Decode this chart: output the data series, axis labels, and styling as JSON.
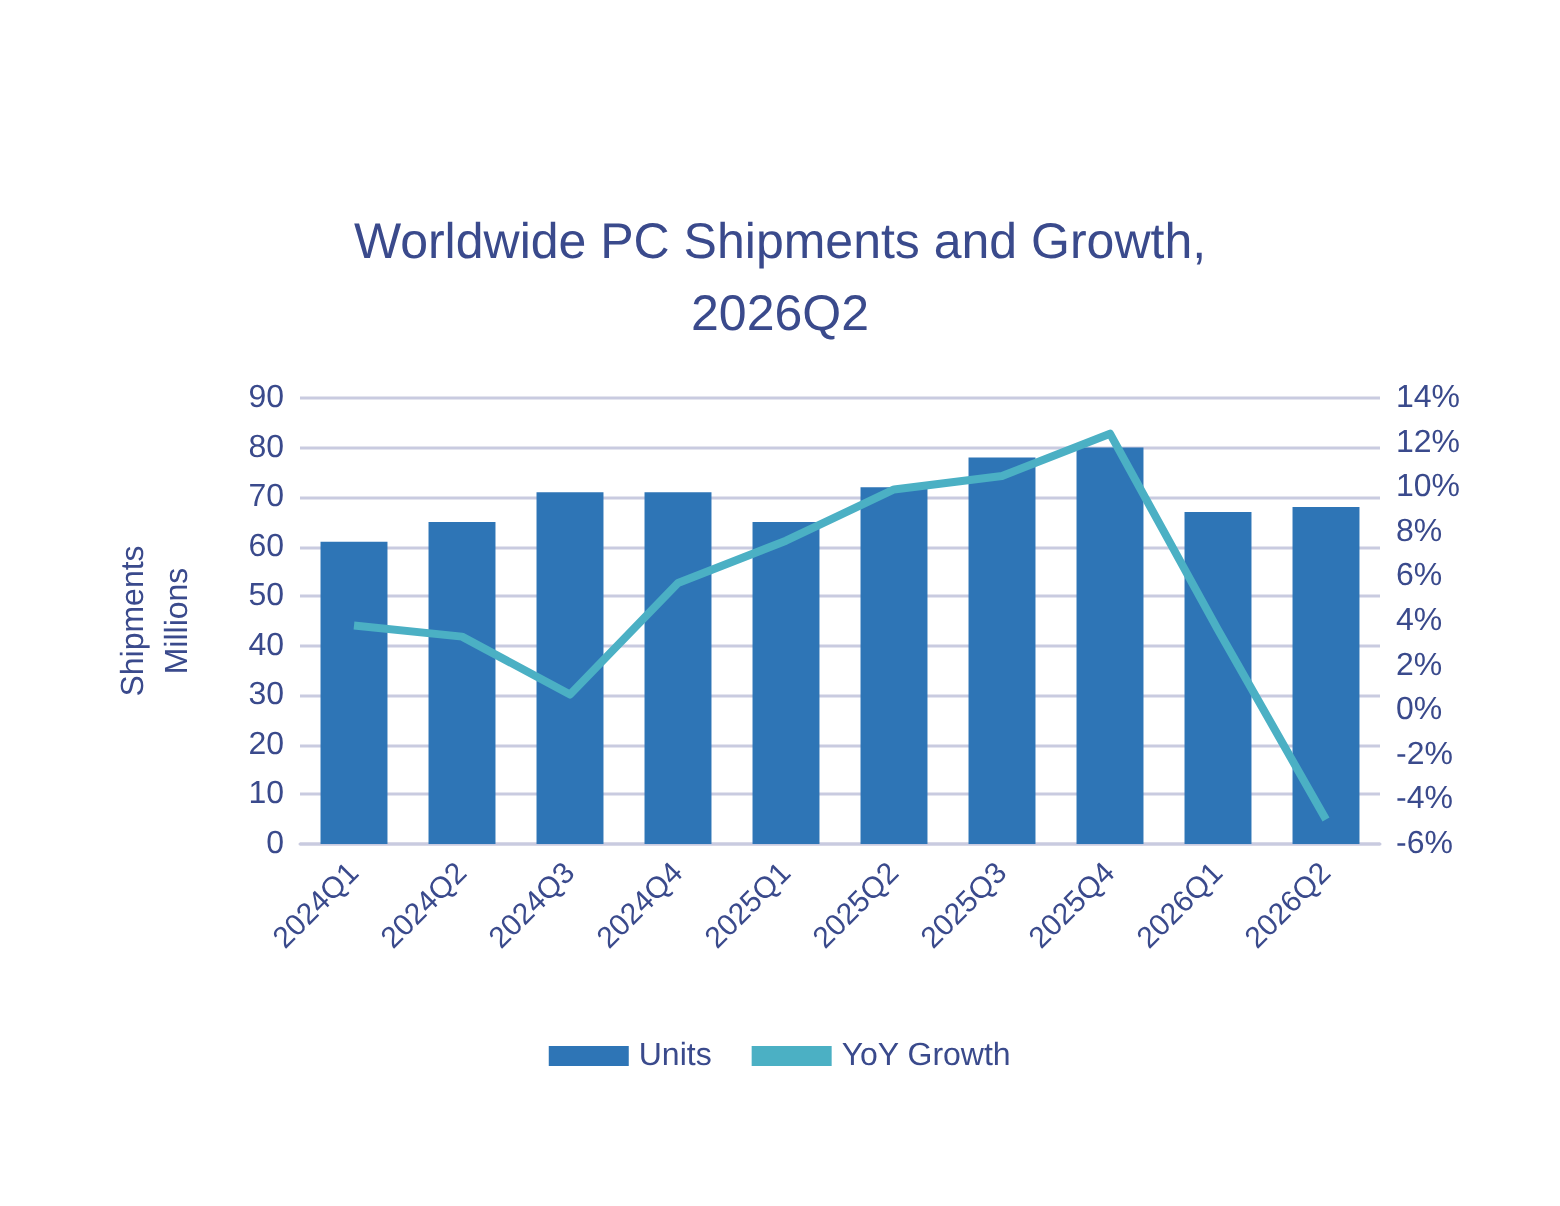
{
  "chart_data": {
    "type": "bar",
    "title": "Worldwide PC Shipments and Growth,\n2026Q2",
    "ylabel": "Shipments\nMillions",
    "categories": [
      "2024Q1",
      "2024Q2",
      "2024Q3",
      "2024Q4",
      "2025Q1",
      "2025Q2",
      "2025Q3",
      "2025Q4",
      "2026Q1",
      "2026Q2"
    ],
    "series": [
      {
        "name": "Units",
        "color": "#2e75b6",
        "values": [
          61,
          65,
          71,
          71,
          65,
          72,
          78,
          80,
          67,
          68
        ]
      },
      {
        "name": "YoY Growth",
        "type": "line",
        "axis": "y2",
        "color": "#4bb0c4",
        "values": [
          3.8,
          3.3,
          0.7,
          5.7,
          7.6,
          9.9,
          10.5,
          12.4,
          3.6,
          -4.9
        ]
      }
    ],
    "ylim": [
      0,
      90
    ],
    "yticks": [
      0,
      10,
      20,
      30,
      40,
      50,
      60,
      70,
      80,
      90
    ],
    "y2lim": [
      -6,
      14
    ],
    "y2ticks": [
      {
        "value": -6,
        "label": "-6%"
      },
      {
        "value": -4,
        "label": "-4%"
      },
      {
        "value": -2,
        "label": "-2%"
      },
      {
        "value": 0,
        "label": "0%"
      },
      {
        "value": 2,
        "label": "2%"
      },
      {
        "value": 4,
        "label": "4%"
      },
      {
        "value": 6,
        "label": "6%"
      },
      {
        "value": 8,
        "label": "8%"
      },
      {
        "value": 10,
        "label": "10%"
      },
      {
        "value": 12,
        "label": "12%"
      },
      {
        "value": 14,
        "label": "14%"
      }
    ],
    "grid": "y",
    "legend": "bottom",
    "marker": "none"
  }
}
